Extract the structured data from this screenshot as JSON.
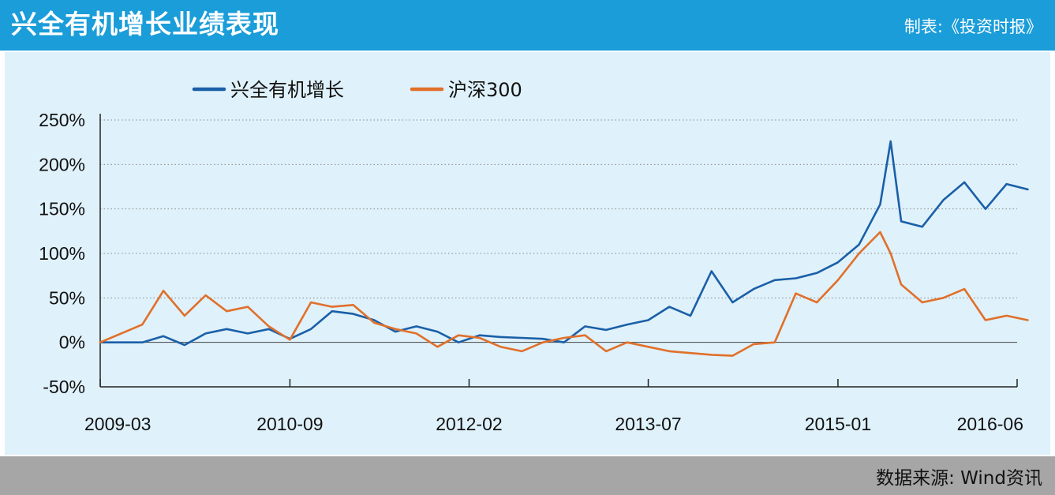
{
  "header": {
    "title": "兴全有机增长业绩表现",
    "credit": "制表:《投资时报》",
    "background_color": "#1a9dd9"
  },
  "footer": {
    "source": "数据来源: Wind资讯",
    "background_color": "#a6a6a6"
  },
  "chart_data": {
    "type": "line",
    "title": "兴全有机增长业绩表现",
    "xlabel": "",
    "ylabel": "",
    "x_tick_labels": [
      "2009-03",
      "2010-09",
      "2012-02",
      "2013-07",
      "2015-01",
      "2016-06"
    ],
    "y_tick_labels": [
      "250%",
      "200%",
      "150%",
      "100%",
      "50%",
      "0%",
      "-50%"
    ],
    "y_ticks": [
      250,
      200,
      150,
      100,
      50,
      0,
      -50
    ],
    "ylim": [
      -50,
      250
    ],
    "y_unit": "%",
    "grid": "horizontal dotted",
    "legend_position": "top-left",
    "x": [
      "2009-03",
      "2009-07",
      "2009-09",
      "2009-11",
      "2010-01",
      "2010-03",
      "2010-05",
      "2010-07",
      "2010-09",
      "2010-11",
      "2011-01",
      "2011-03",
      "2011-05",
      "2011-07",
      "2011-09",
      "2011-11",
      "2012-01",
      "2012-03",
      "2012-05",
      "2012-07",
      "2012-09",
      "2012-11",
      "2013-01",
      "2013-03",
      "2013-05",
      "2013-07",
      "2013-09",
      "2013-11",
      "2014-01",
      "2014-03",
      "2014-05",
      "2014-07",
      "2014-09",
      "2014-11",
      "2015-01",
      "2015-03",
      "2015-05",
      "2015-06",
      "2015-07",
      "2015-09",
      "2015-11",
      "2016-01",
      "2016-03",
      "2016-05",
      "2016-07"
    ],
    "series": [
      {
        "name": "兴全有机增长",
        "color": "#1a5fa8",
        "values": [
          0,
          0,
          7,
          -3,
          10,
          15,
          10,
          15,
          4,
          15,
          35,
          32,
          25,
          12,
          18,
          12,
          0,
          8,
          6,
          5,
          4,
          0,
          18,
          14,
          20,
          25,
          40,
          30,
          80,
          45,
          60,
          70,
          72,
          78,
          90,
          110,
          155,
          226,
          136,
          130,
          160,
          180,
          150,
          178,
          172
        ]
      },
      {
        "name": "沪深300",
        "color": "#e0702a",
        "values": [
          0,
          20,
          58,
          30,
          53,
          35,
          40,
          18,
          3,
          45,
          40,
          42,
          22,
          15,
          10,
          -5,
          8,
          5,
          -5,
          -10,
          0,
          5,
          8,
          -10,
          0,
          -5,
          -10,
          -12,
          -14,
          -15,
          -2,
          0,
          55,
          45,
          70,
          100,
          124,
          100,
          65,
          45,
          50,
          60,
          25,
          30,
          25
        ]
      }
    ]
  }
}
